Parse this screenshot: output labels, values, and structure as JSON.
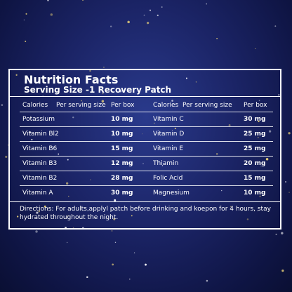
{
  "header": {
    "title": "Nutrition Facts",
    "subtitle": "Serving Size -1 Recovery Patch"
  },
  "table": {
    "headers": [
      "Calories",
      "Per serving size",
      "Per box",
      "Calories",
      "Per serving size",
      "Per box"
    ],
    "rows": [
      [
        "Potassium",
        "10 mg",
        "Vitamin C",
        "30 mg"
      ],
      [
        "Vitamin Bl2",
        "10 mg",
        "Vitamin D",
        "25 mg"
      ],
      [
        "Vitamin B6",
        "15 mg",
        "Vitamin E",
        "25 mg"
      ],
      [
        "Vitamin B3",
        "12 mg",
        "Thiamin",
        "20 mg"
      ],
      [
        "Vitamin B2",
        "28 mg",
        "Folic Acid",
        "15 mg"
      ],
      [
        "Vitamin A",
        "30 mg",
        "Magnesium",
        "10 mg"
      ]
    ]
  },
  "footer": {
    "directions": "Directions: For adults,applyl patch before drinking and koepon for 4 hours, stay hydrated throughout the night."
  }
}
